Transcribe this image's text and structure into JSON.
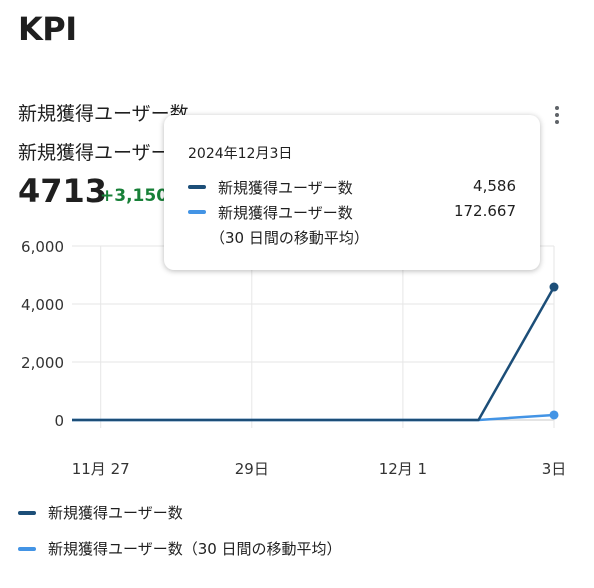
{
  "page": {
    "title": "KPI"
  },
  "card": {
    "title": "新規獲得ユーザー数",
    "metric_label": "新規獲得ユーザー",
    "metric_value": "4713",
    "metric_delta": "+3,150",
    "delta_color": "#188038"
  },
  "tooltip": {
    "date": "2024年12月3日",
    "rows": [
      {
        "name": "新規獲得ユーザー数",
        "value": "4,586",
        "color": "#1c4e78"
      },
      {
        "name": "新規獲得ユーザー数",
        "sub": "（30 日間の移動平均）",
        "value": "172.667",
        "color": "#4394e5"
      }
    ]
  },
  "legend": [
    {
      "label": "新規獲得ユーザー数",
      "color": "#1c4e78"
    },
    {
      "label": "新規獲得ユーザー数（30 日間の移動平均）",
      "color": "#4394e5"
    }
  ],
  "chart_data": {
    "type": "line",
    "x": [
      "2024-11-26",
      "2024-11-27",
      "2024-11-28",
      "2024-11-29",
      "2024-11-30",
      "2024-12-01",
      "2024-12-02",
      "2024-12-03"
    ],
    "x_tick_labels": [
      "11月 27",
      "29日",
      "12月 1",
      "3日"
    ],
    "y_ticks": [
      "6,000",
      "4,000",
      "2,000",
      "0"
    ],
    "ylim": [
      0,
      6000
    ],
    "grid": true,
    "series": [
      {
        "name": "新規獲得ユーザー数",
        "color": "#1c4e78",
        "values": [
          0,
          0,
          0,
          0,
          0,
          0,
          0,
          4586
        ]
      },
      {
        "name": "新規獲得ユーザー数（30 日間の移動平均）",
        "color": "#4394e5",
        "values": [
          0,
          0,
          0,
          0,
          0,
          0,
          0,
          172.667
        ]
      }
    ]
  }
}
